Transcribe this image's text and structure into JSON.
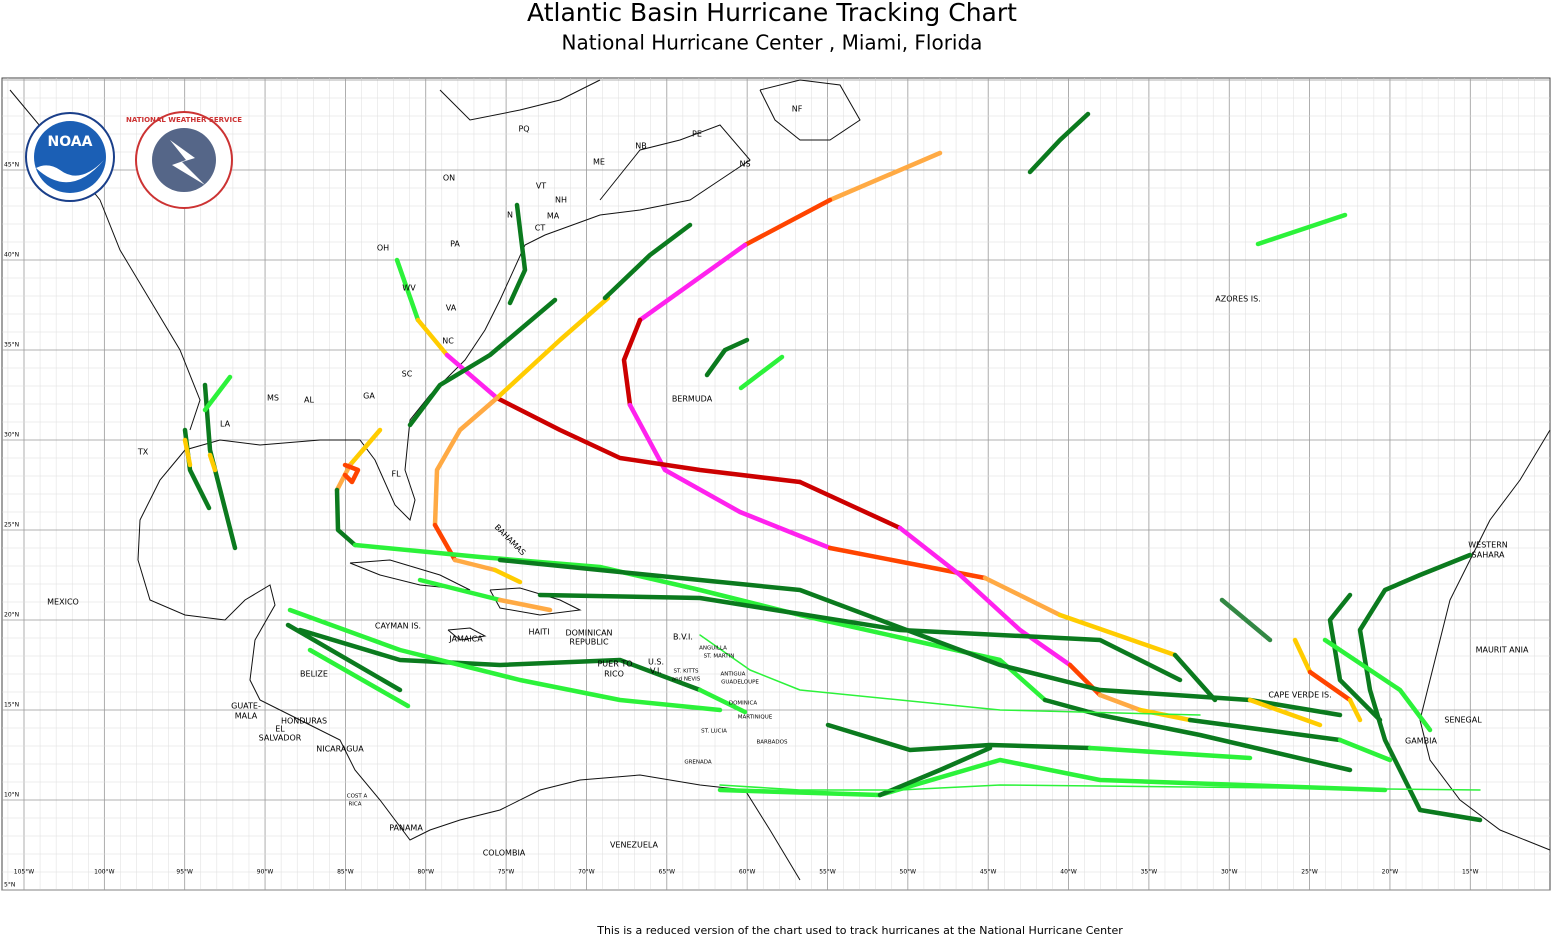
{
  "header": {
    "title": "Atlantic Basin  Hurricane  Tracking  Chart",
    "subtitle": "National  Hurricane  Center , Miami,  Florida"
  },
  "footer": "This  is  a  reduced  version  of  the  chart  used  to track  hurricanes  at  the National  Hurricane  Center",
  "logos": {
    "noaa": "NOAA",
    "nws": "NATIONAL WEATHER SERVICE"
  },
  "lon_labels": [
    "105°W",
    "100°W",
    "95°W",
    "90°W",
    "85°W",
    "80°W",
    "75°W",
    "70°W",
    "65°W",
    "60°W",
    "55°W",
    "50°W",
    "45°W",
    "40°W",
    "35°W",
    "30°W",
    "25°W",
    "20°W",
    "15°W"
  ],
  "lat_labels": [
    "5°N",
    "10°N",
    "15°N",
    "20°N",
    "25°N",
    "30°N",
    "35°N",
    "40°N",
    "45°N"
  ],
  "places": [
    "PQ",
    "NF",
    "PE",
    "NB",
    "NS",
    "ME",
    "ON",
    "VT",
    "NH",
    "MA",
    "CT",
    "N",
    "PA",
    "OH",
    "WV",
    "VA",
    "NC",
    "SC",
    "GA",
    "AL",
    "MS",
    "LA",
    "TX",
    "FL",
    "BERMUDA",
    "AZORES  IS.",
    "BAHAMAS",
    "MEXICO",
    "CAYMAN  IS.",
    "JAMAICA",
    "HAITI",
    "DOMINICAN",
    "REPUBLIC",
    "B.V.I.",
    "ANGUILLA",
    "ST. MARTIN",
    "PUER  TO",
    "RICO",
    "U.S.",
    "V.I.",
    "ST. KITTS",
    "and NEVIS",
    "ANTIGUA",
    "GUADELOUPE",
    "DOMINICA",
    "MARTINIQUE",
    "ST. LUCIA",
    "BARBADOS",
    "GRENADA",
    "BELIZE",
    "GUATE-",
    "MALA",
    "HONDURAS",
    "EL",
    "SALVADOR",
    "NICARAGUA",
    "COST A",
    "RICA",
    "PANAMA",
    "COLOMBIA",
    "VENEZUELA",
    "CAPE  VERDE  IS.",
    "WESTERN",
    "SAHARA",
    "MAURIT ANIA",
    "SENEGAL",
    "GAMBIA"
  ]
}
